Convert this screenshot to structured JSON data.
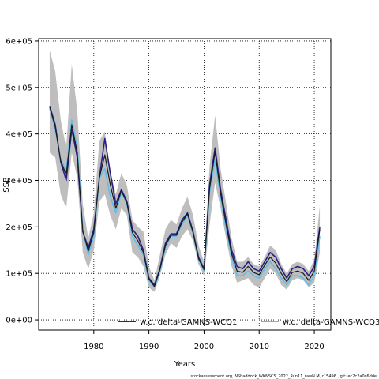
{
  "chart_data": {
    "type": "line",
    "xlabel": "Years",
    "ylabel": "SSB",
    "xlim": [
      1970,
      2023
    ],
    "ylim": [
      -22000,
      605000
    ],
    "x_ticks": [
      1980,
      1990,
      2000,
      2010,
      2020
    ],
    "x_tick_labels": [
      "1980",
      "1990",
      "2000",
      "2010",
      "2020"
    ],
    "y_ticks": [
      0,
      100000,
      200000,
      300000,
      400000,
      500000,
      600000
    ],
    "y_tick_labels": [
      "0e+00",
      "1e+05",
      "2e+05",
      "3e+05",
      "4e+05",
      "5e+05",
      "6e+05"
    ],
    "grid": true,
    "grid_style": "dotted",
    "legend_placement": "bottom",
    "footnote": "stockassessment.org, NShaddock_WKNSCS_2022_Run11_rawN M, r15496 , git: ec2c2a0c6dde",
    "years": [
      1972,
      1973,
      1974,
      1975,
      1976,
      1977,
      1978,
      1979,
      1980,
      1981,
      1982,
      1983,
      1984,
      1985,
      1986,
      1987,
      1988,
      1989,
      1990,
      1991,
      1992,
      1993,
      1994,
      1995,
      1996,
      1997,
      1998,
      1999,
      2000,
      2001,
      2002,
      2003,
      2004,
      2005,
      2006,
      2007,
      2008,
      2009,
      2010,
      2011,
      2012,
      2013,
      2014,
      2015,
      2016,
      2017,
      2018,
      2019,
      2020,
      2021
    ],
    "confidence_band": {
      "color": "#bebebe",
      "upper": [
        580000,
        535000,
        430000,
        370000,
        550000,
        450000,
        250000,
        175000,
        230000,
        385000,
        405000,
        320000,
        270000,
        315000,
        290000,
        215000,
        200000,
        190000,
        115000,
        85000,
        140000,
        195000,
        215000,
        205000,
        240000,
        265000,
        225000,
        160000,
        125000,
        330000,
        440000,
        325000,
        250000,
        175000,
        125000,
        125000,
        135000,
        120000,
        115000,
        135000,
        160000,
        150000,
        120000,
        100000,
        120000,
        125000,
        120000,
        105000,
        130000,
        245000
      ],
      "lower": [
        360000,
        350000,
        270000,
        240000,
        360000,
        305000,
        145000,
        110000,
        150000,
        255000,
        270000,
        225000,
        195000,
        240000,
        225000,
        145000,
        135000,
        115000,
        70000,
        60000,
        95000,
        140000,
        165000,
        155000,
        180000,
        195000,
        170000,
        120000,
        95000,
        205000,
        295000,
        240000,
        175000,
        115000,
        80000,
        85000,
        90000,
        75000,
        70000,
        90000,
        110000,
        100000,
        75000,
        65000,
        85000,
        90000,
        85000,
        70000,
        80000,
        145000
      ]
    },
    "series": [
      {
        "name": "w.o. delta-GAMNS-WCQ1",
        "color": "#2c1f86",
        "width": 1.6,
        "values": [
          460000,
          420000,
          340000,
          300000,
          410000,
          350000,
          190000,
          155000,
          195000,
          305000,
          390000,
          315000,
          250000,
          280000,
          255000,
          195000,
          180000,
          150000,
          90000,
          75000,
          110000,
          165000,
          185000,
          185000,
          215000,
          230000,
          190000,
          135000,
          110000,
          290000,
          370000,
          280000,
          215000,
          150000,
          115000,
          110000,
          125000,
          110000,
          105000,
          125000,
          145000,
          135000,
          110000,
          90000,
          110000,
          115000,
          110000,
          95000,
          115000,
          200000
        ]
      },
      {
        "name": "w.o. delta-GAMNS-WCQ3",
        "color": "#5fbde9",
        "width": 1.6,
        "values": [
          455000,
          410000,
          345000,
          320000,
          430000,
          370000,
          195000,
          140000,
          180000,
          305000,
          325000,
          265000,
          230000,
          275000,
          250000,
          180000,
          160000,
          140000,
          85000,
          70000,
          105000,
          155000,
          180000,
          180000,
          205000,
          225000,
          185000,
          130000,
          105000,
          275000,
          345000,
          265000,
          195000,
          135000,
          95000,
          95000,
          105000,
          95000,
          90000,
          110000,
          125000,
          110000,
          90000,
          75000,
          95000,
          95000,
          90000,
          75000,
          95000,
          180000
        ]
      },
      {
        "name": "",
        "color": "#1a1a1a",
        "width": 1.2,
        "values": [
          458000,
          415000,
          342000,
          312000,
          420000,
          360000,
          192000,
          148000,
          188000,
          305000,
          355000,
          290000,
          240000,
          278000,
          252000,
          188000,
          170000,
          145000,
          88000,
          72000,
          108000,
          160000,
          182000,
          182000,
          210000,
          228000,
          188000,
          132000,
          108000,
          282000,
          362000,
          272000,
          205000,
          142000,
          105000,
          102000,
          115000,
          102000,
          97000,
          118000,
          135000,
          122000,
          100000,
          82000,
          102000,
          105000,
          100000,
          85000,
          105000,
          195000
        ]
      }
    ]
  }
}
